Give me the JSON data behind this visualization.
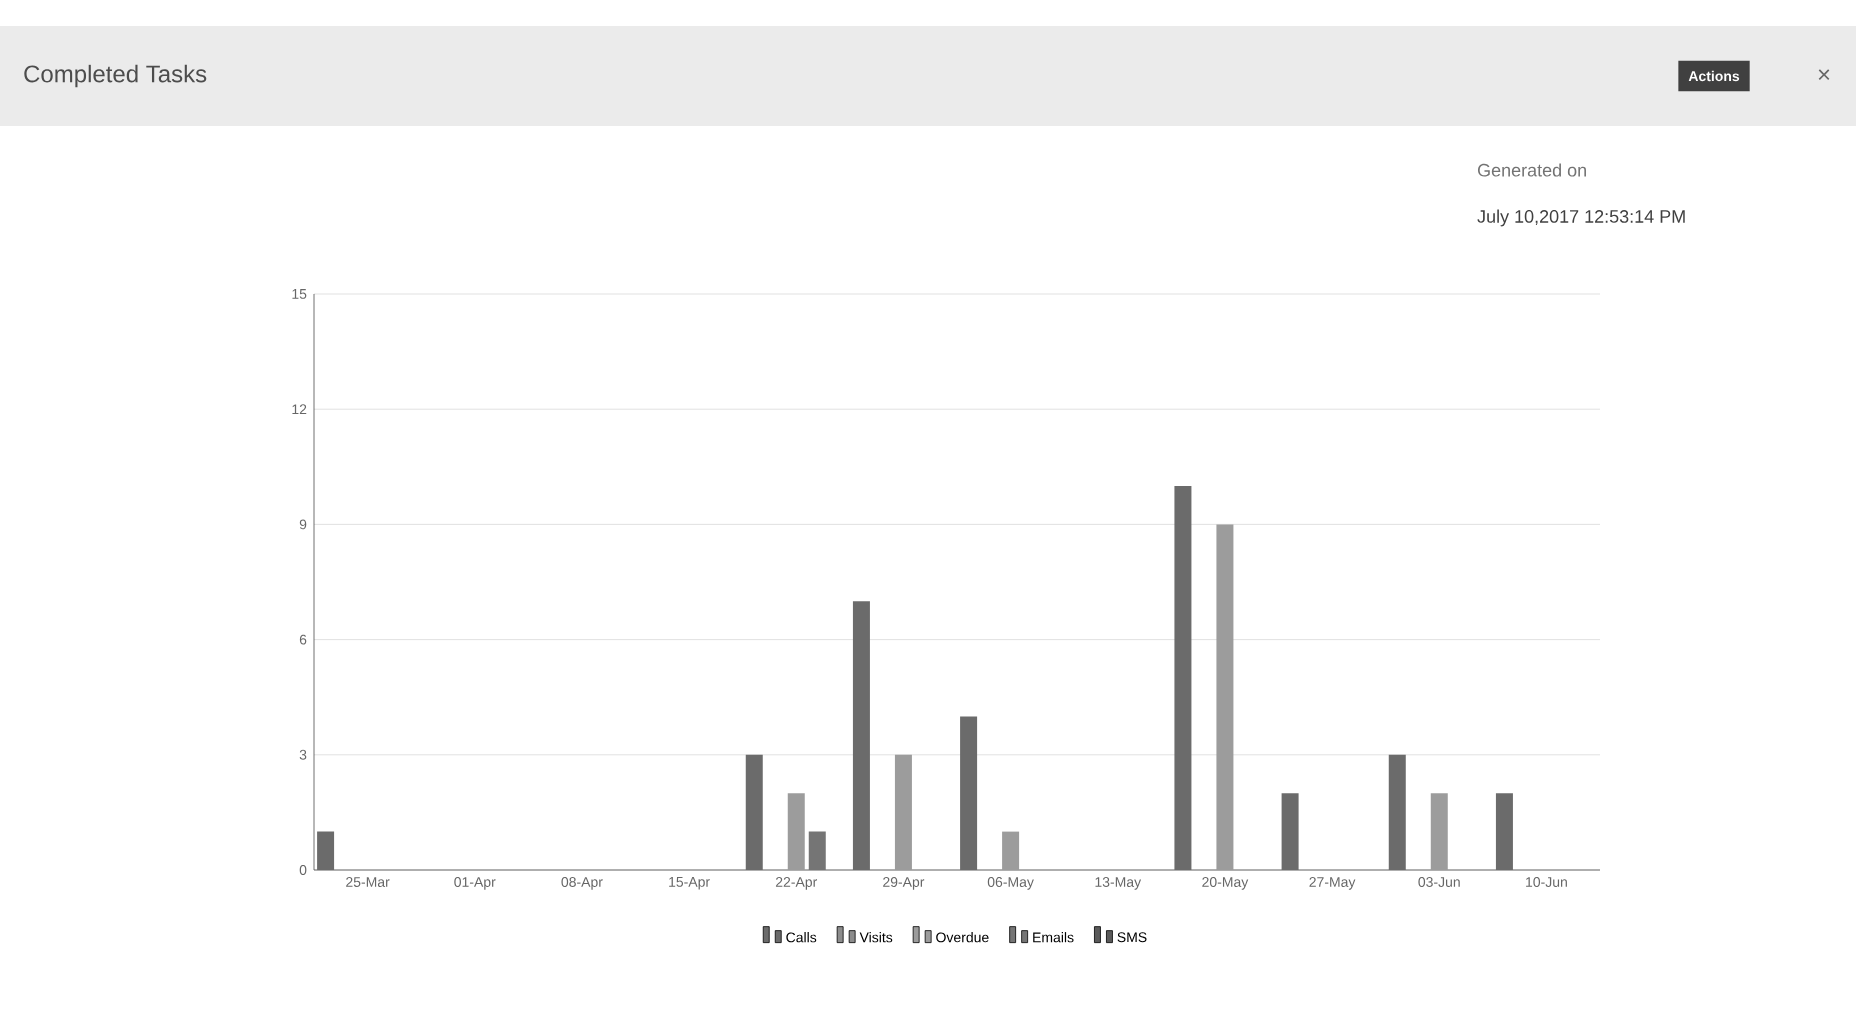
{
  "chart_data": {
    "type": "bar",
    "title": "Completed Tasks",
    "annotations": [
      "Generated on",
      "July 10,2017 12:53:14 PM",
      "Actions",
      "×"
    ],
    "categories": [
      "25-Mar",
      "01-Apr",
      "08-Apr",
      "15-Apr",
      "22-Apr",
      "29-Apr",
      "06-May",
      "13-May",
      "20-May",
      "27-May",
      "03-Jun",
      "10-Jun"
    ],
    "series": [
      {
        "name": "Calls",
        "color": "#6b6b6b",
        "values": [
          1,
          0,
          0,
          0,
          3,
          7,
          4,
          0,
          10,
          2,
          3,
          2
        ]
      },
      {
        "name": "Visits",
        "color": "#8c8c8c",
        "values": [
          0,
          0,
          0,
          0,
          0,
          0,
          0,
          0,
          0,
          0,
          0,
          0
        ]
      },
      {
        "name": "Overdue",
        "color": "#9c9c9c",
        "values": [
          0,
          0,
          0,
          0,
          2,
          3,
          1,
          0,
          9,
          0,
          2,
          0
        ]
      },
      {
        "name": "Emails",
        "color": "#757575",
        "values": [
          0,
          0,
          0,
          0,
          1,
          0,
          0,
          0,
          0,
          0,
          0,
          0
        ]
      },
      {
        "name": "SMS",
        "color": "#5a5a5a",
        "values": [
          0,
          0,
          0,
          0,
          0,
          0,
          0,
          0,
          0,
          0,
          0,
          0
        ]
      }
    ],
    "ylim": [
      0,
      15
    ],
    "yticks": [
      0,
      3,
      6,
      9,
      12,
      15
    ],
    "grid": "y",
    "legend": "bottom"
  }
}
